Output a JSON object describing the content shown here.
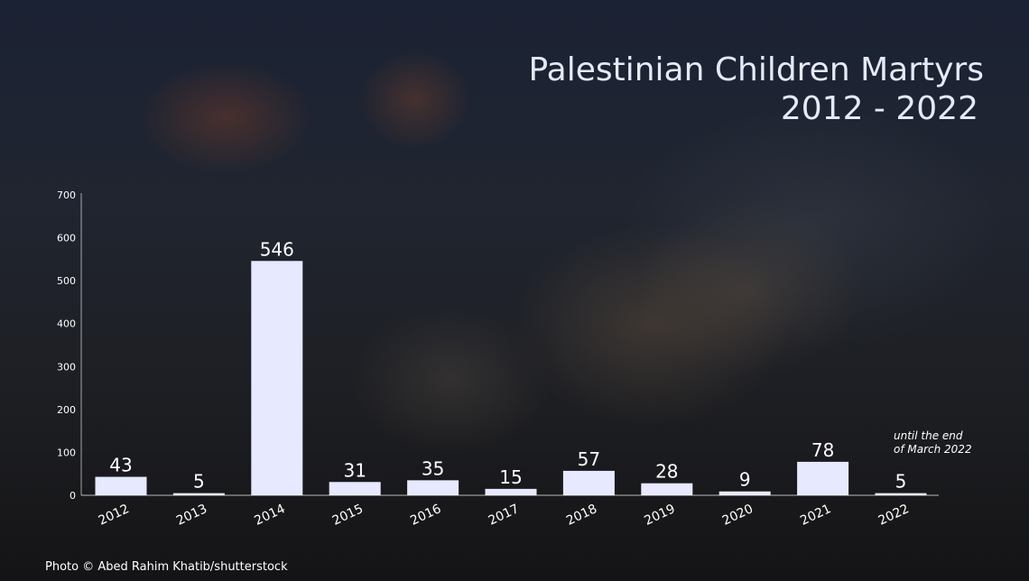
{
  "title": {
    "line1": "Palestinian Children Martyrs",
    "line2": "2012 - 2022"
  },
  "note": {
    "line1": "until the end",
    "line2": "of March 2022"
  },
  "credit": "Photo © Abed Rahim Khatib/shutterstock",
  "colors": {
    "bar": "#e6e9ff",
    "text": "#ffffff",
    "axis": "#ffffff"
  },
  "chart_data": {
    "type": "bar",
    "title": "Palestinian Children Martyrs 2012 - 2022",
    "categories": [
      "2012",
      "2013",
      "2014",
      "2015",
      "2016",
      "2017",
      "2018",
      "2019",
      "2020",
      "2021",
      "2022"
    ],
    "values": [
      43,
      5,
      546,
      31,
      35,
      15,
      57,
      28,
      9,
      78,
      5
    ],
    "ylim": [
      0,
      700
    ],
    "yticks": [
      0,
      100,
      200,
      300,
      400,
      500,
      600,
      700
    ],
    "xlabel": "",
    "ylabel": "",
    "grid": false,
    "data_labels": true
  }
}
